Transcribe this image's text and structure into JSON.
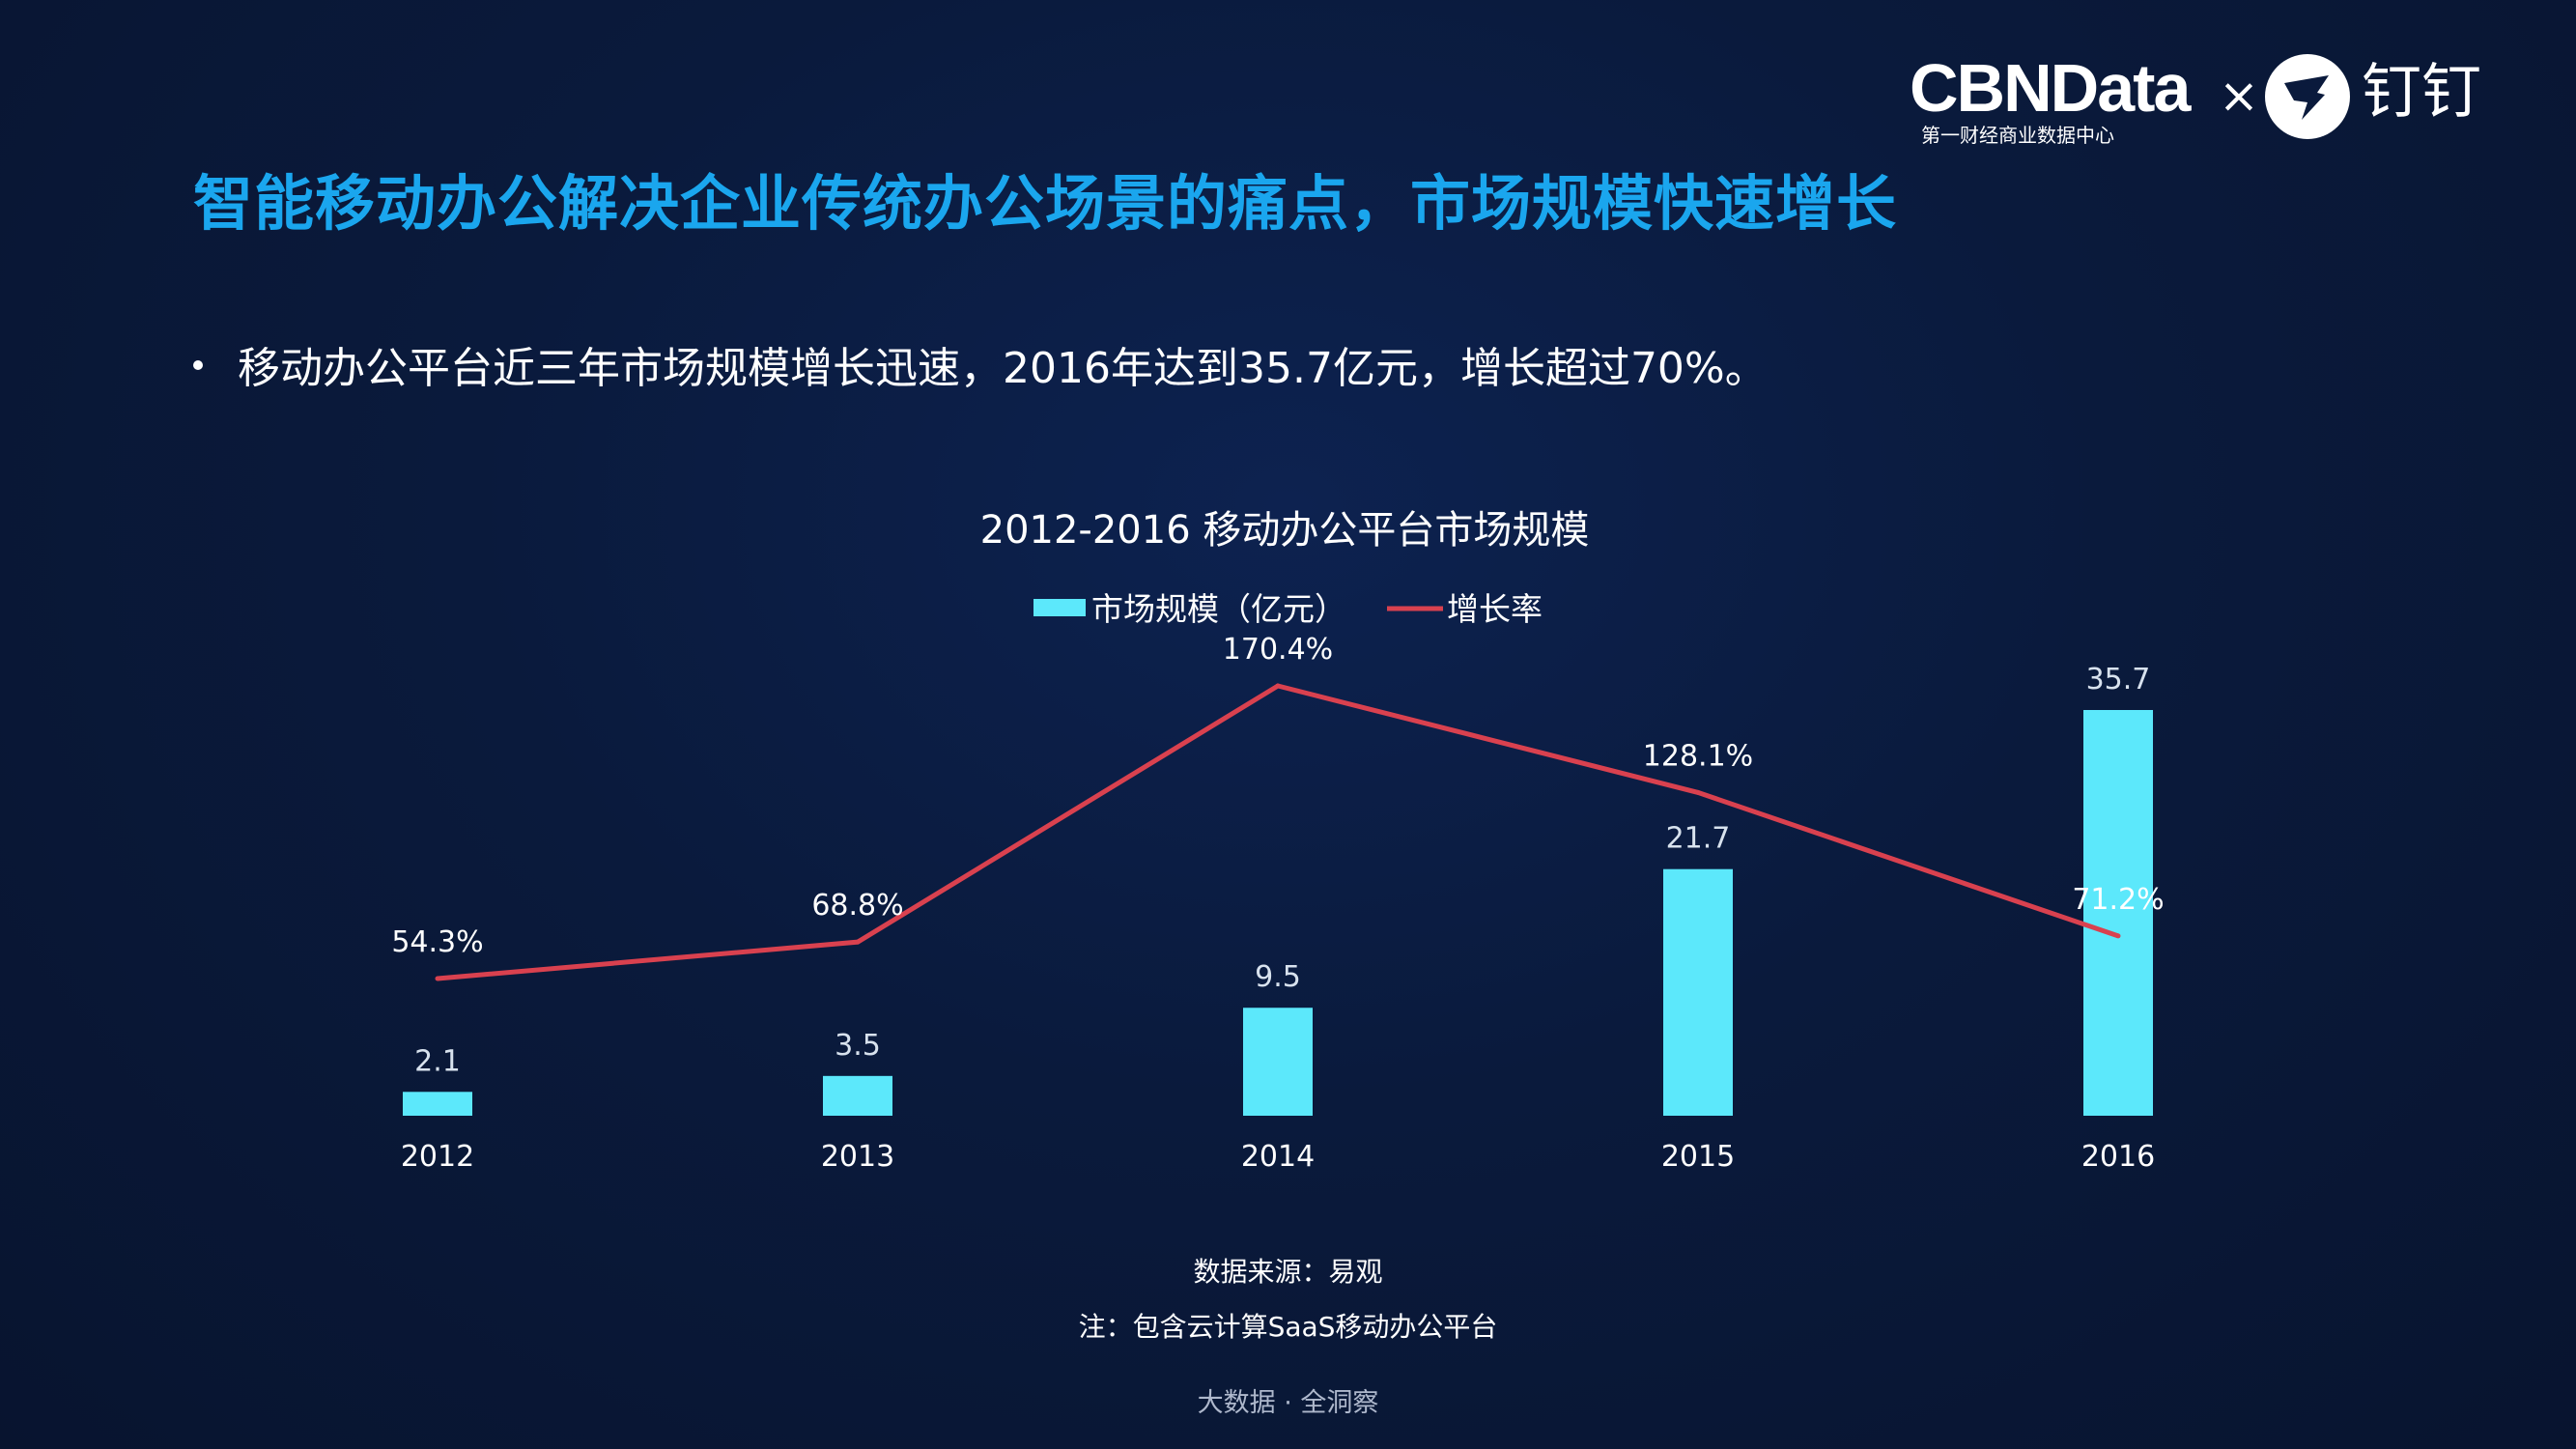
{
  "header": {
    "title": "智能移动办公解决企业传统办公场景的痛点，市场规模快速增长",
    "bullet": "移动办公平台近三年市场规模增长迅速，2016年达到35.7亿元，增长超过70%。"
  },
  "logo": {
    "cbn": "CBNData",
    "cbn_sub": "第一财经商业数据中心",
    "times": "×",
    "partner": "钉钉",
    "partner_icon": "dingtalk-icon"
  },
  "chart_data": {
    "type": "bar",
    "title": "2012-2016 移动办公平台市场规模",
    "categories": [
      "2012",
      "2013",
      "2014",
      "2015",
      "2016"
    ],
    "series": [
      {
        "name": "市场规模（亿元）",
        "type": "bar",
        "values": [
          2.1,
          3.5,
          9.5,
          21.7,
          35.7
        ],
        "labels": [
          "2.1",
          "3.5",
          "9.5",
          "21.7",
          "35.7"
        ],
        "color": "#5ce8fb"
      },
      {
        "name": "增长率",
        "type": "line",
        "values": [
          54.3,
          68.8,
          170.4,
          128.1,
          71.2
        ],
        "labels": [
          "54.3%",
          "68.8%",
          "170.4%",
          "128.1%",
          "71.2%"
        ],
        "color": "#d9414f"
      }
    ],
    "bar_ylim": [
      0,
      38
    ],
    "line_ylim": [
      -40,
      190
    ],
    "legend_position": "top-center",
    "grid": false
  },
  "footer": {
    "source": "数据来源：易观",
    "note": "注：包含云计算SaaS移动办公平台",
    "tagline": "大数据 · 全洞察"
  }
}
